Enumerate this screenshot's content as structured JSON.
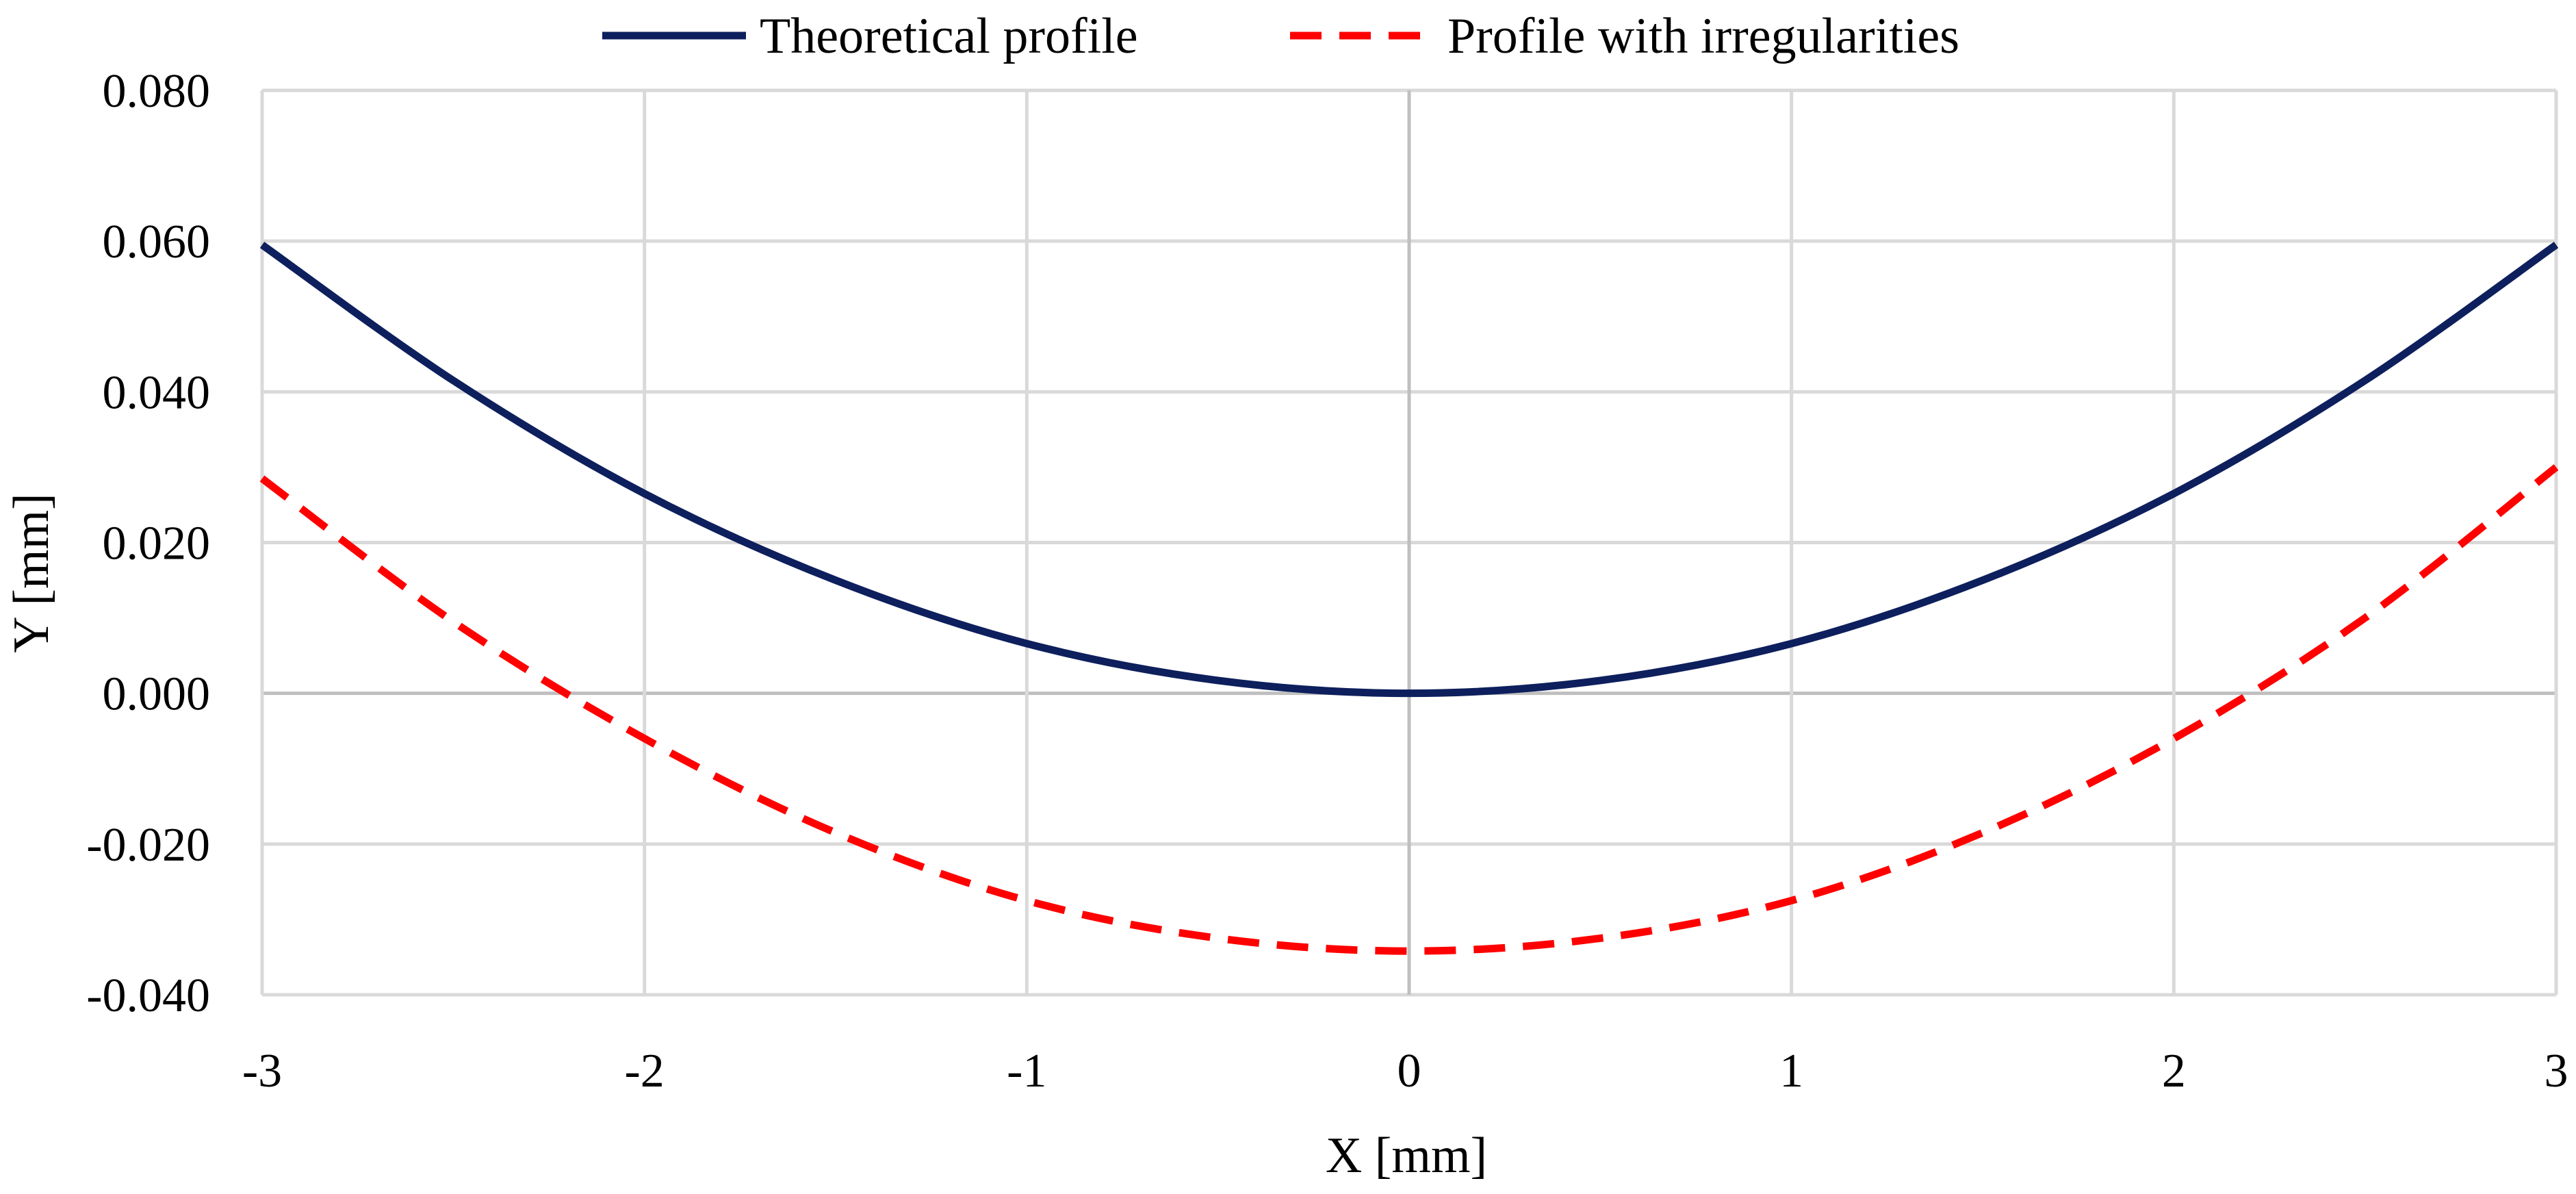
{
  "chart_data": {
    "type": "line",
    "title": "",
    "xlabel": "X [mm]",
    "ylabel": "Y [mm]",
    "xlim": [
      -3,
      3
    ],
    "ylim": [
      -0.04,
      0.08
    ],
    "grid": true,
    "legend_position": "top-center",
    "x_ticks": [
      -3,
      -2,
      -1,
      0,
      1,
      2,
      3
    ],
    "x_tick_labels": [
      "-3",
      "-2",
      "-1",
      "0",
      "1",
      "2",
      "3"
    ],
    "y_ticks": [
      0.08,
      0.06,
      0.04,
      0.02,
      0.0,
      -0.02,
      -0.04
    ],
    "y_tick_labels": [
      "0.080",
      "0.060",
      "0.040",
      "0.020",
      "0.000",
      "-0.020",
      "-0.040"
    ],
    "series": [
      {
        "name": "Theoretical profile",
        "style": "solid",
        "color": "#0d1f5c",
        "x": [
          -3,
          -2.5,
          -2,
          -1.5,
          -1,
          -0.5,
          0,
          0.5,
          1,
          1.5,
          2,
          2.5,
          3
        ],
        "y": [
          0.0595,
          0.0415,
          0.0265,
          0.015,
          0.0066,
          0.0017,
          0.0,
          0.0017,
          0.0066,
          0.015,
          0.0265,
          0.0415,
          0.0595
        ]
      },
      {
        "name": "Profile with irregularities",
        "style": "dashed",
        "color": "#ff0000",
        "x": [
          -3,
          -2.5,
          -2,
          -1.5,
          -1,
          -0.5,
          0,
          0.5,
          1,
          1.5,
          2,
          2.5,
          3
        ],
        "y": [
          0.0285,
          0.0095,
          -0.006,
          -0.0185,
          -0.0275,
          -0.0325,
          -0.0342,
          -0.0325,
          -0.0275,
          -0.0185,
          -0.006,
          0.01,
          0.03
        ]
      }
    ]
  }
}
